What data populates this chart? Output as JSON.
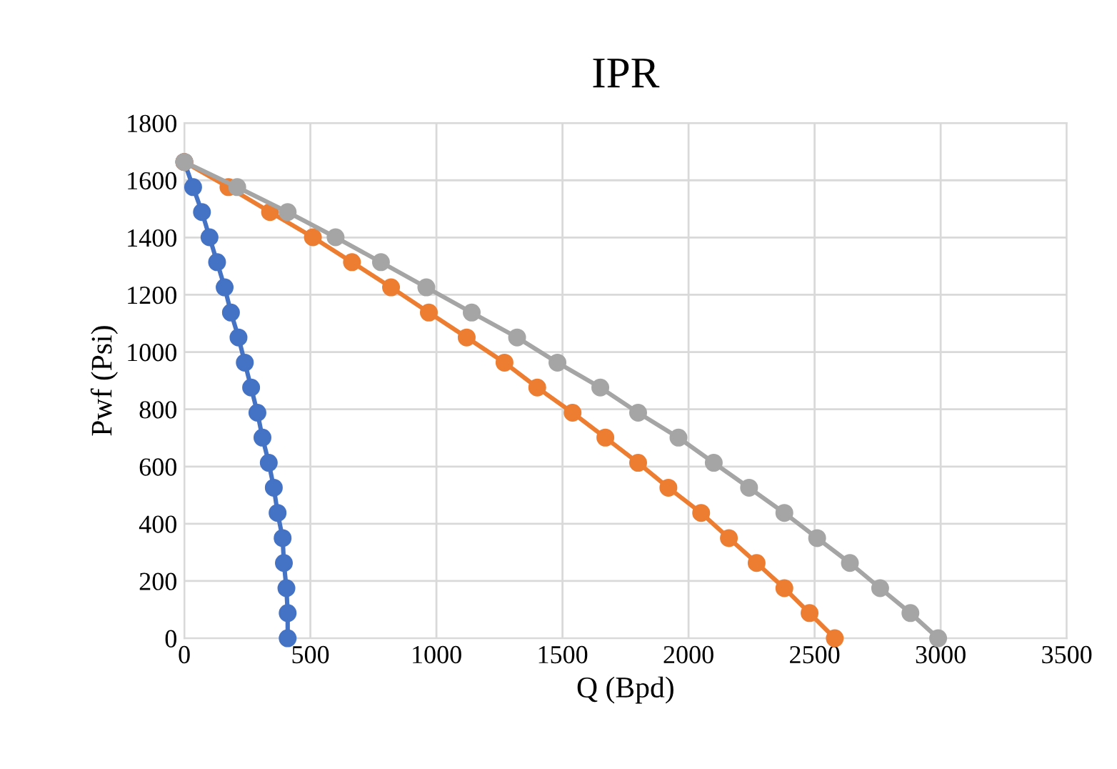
{
  "chart_data": {
    "type": "line",
    "title": "IPR",
    "xlabel": "Q (Bpd)",
    "ylabel": "Pwf (Psi)",
    "xlim": [
      0,
      3500
    ],
    "xticks": [
      0,
      500,
      1000,
      1500,
      2000,
      2500,
      3000,
      3500
    ],
    "ylim": [
      0,
      1800
    ],
    "yticks": [
      0,
      200,
      400,
      600,
      800,
      1000,
      1200,
      1400,
      1600,
      1800
    ],
    "grid": true,
    "marker": "circle",
    "line_style": "solid",
    "series": [
      {
        "color": "#4472c4",
        "x": [
          0,
          35,
          70,
          100,
          130,
          160,
          185,
          215,
          240,
          265,
          290,
          310,
          335,
          355,
          370,
          390,
          395,
          405,
          410,
          410
        ],
        "values": [
          1664,
          1576,
          1489,
          1401,
          1314,
          1226,
          1138,
          1051,
          963,
          876,
          788,
          701,
          613,
          526,
          438,
          350,
          263,
          175,
          88,
          0
        ]
      },
      {
        "color": "#ed7d31",
        "x": [
          0,
          175,
          340,
          510,
          665,
          820,
          970,
          1120,
          1270,
          1400,
          1540,
          1670,
          1800,
          1920,
          2050,
          2160,
          2270,
          2380,
          2480,
          2580
        ],
        "values": [
          1664,
          1576,
          1489,
          1401,
          1314,
          1226,
          1138,
          1051,
          963,
          876,
          788,
          701,
          613,
          526,
          438,
          350,
          263,
          175,
          88,
          0
        ]
      },
      {
        "color": "#a5a5a5",
        "x": [
          0,
          210,
          410,
          600,
          780,
          960,
          1140,
          1320,
          1480,
          1650,
          1800,
          1960,
          2100,
          2240,
          2380,
          2510,
          2640,
          2760,
          2880,
          2990
        ],
        "values": [
          1664,
          1576,
          1489,
          1401,
          1314,
          1226,
          1138,
          1051,
          963,
          876,
          788,
          701,
          613,
          526,
          438,
          350,
          263,
          175,
          88,
          0
        ]
      }
    ]
  }
}
